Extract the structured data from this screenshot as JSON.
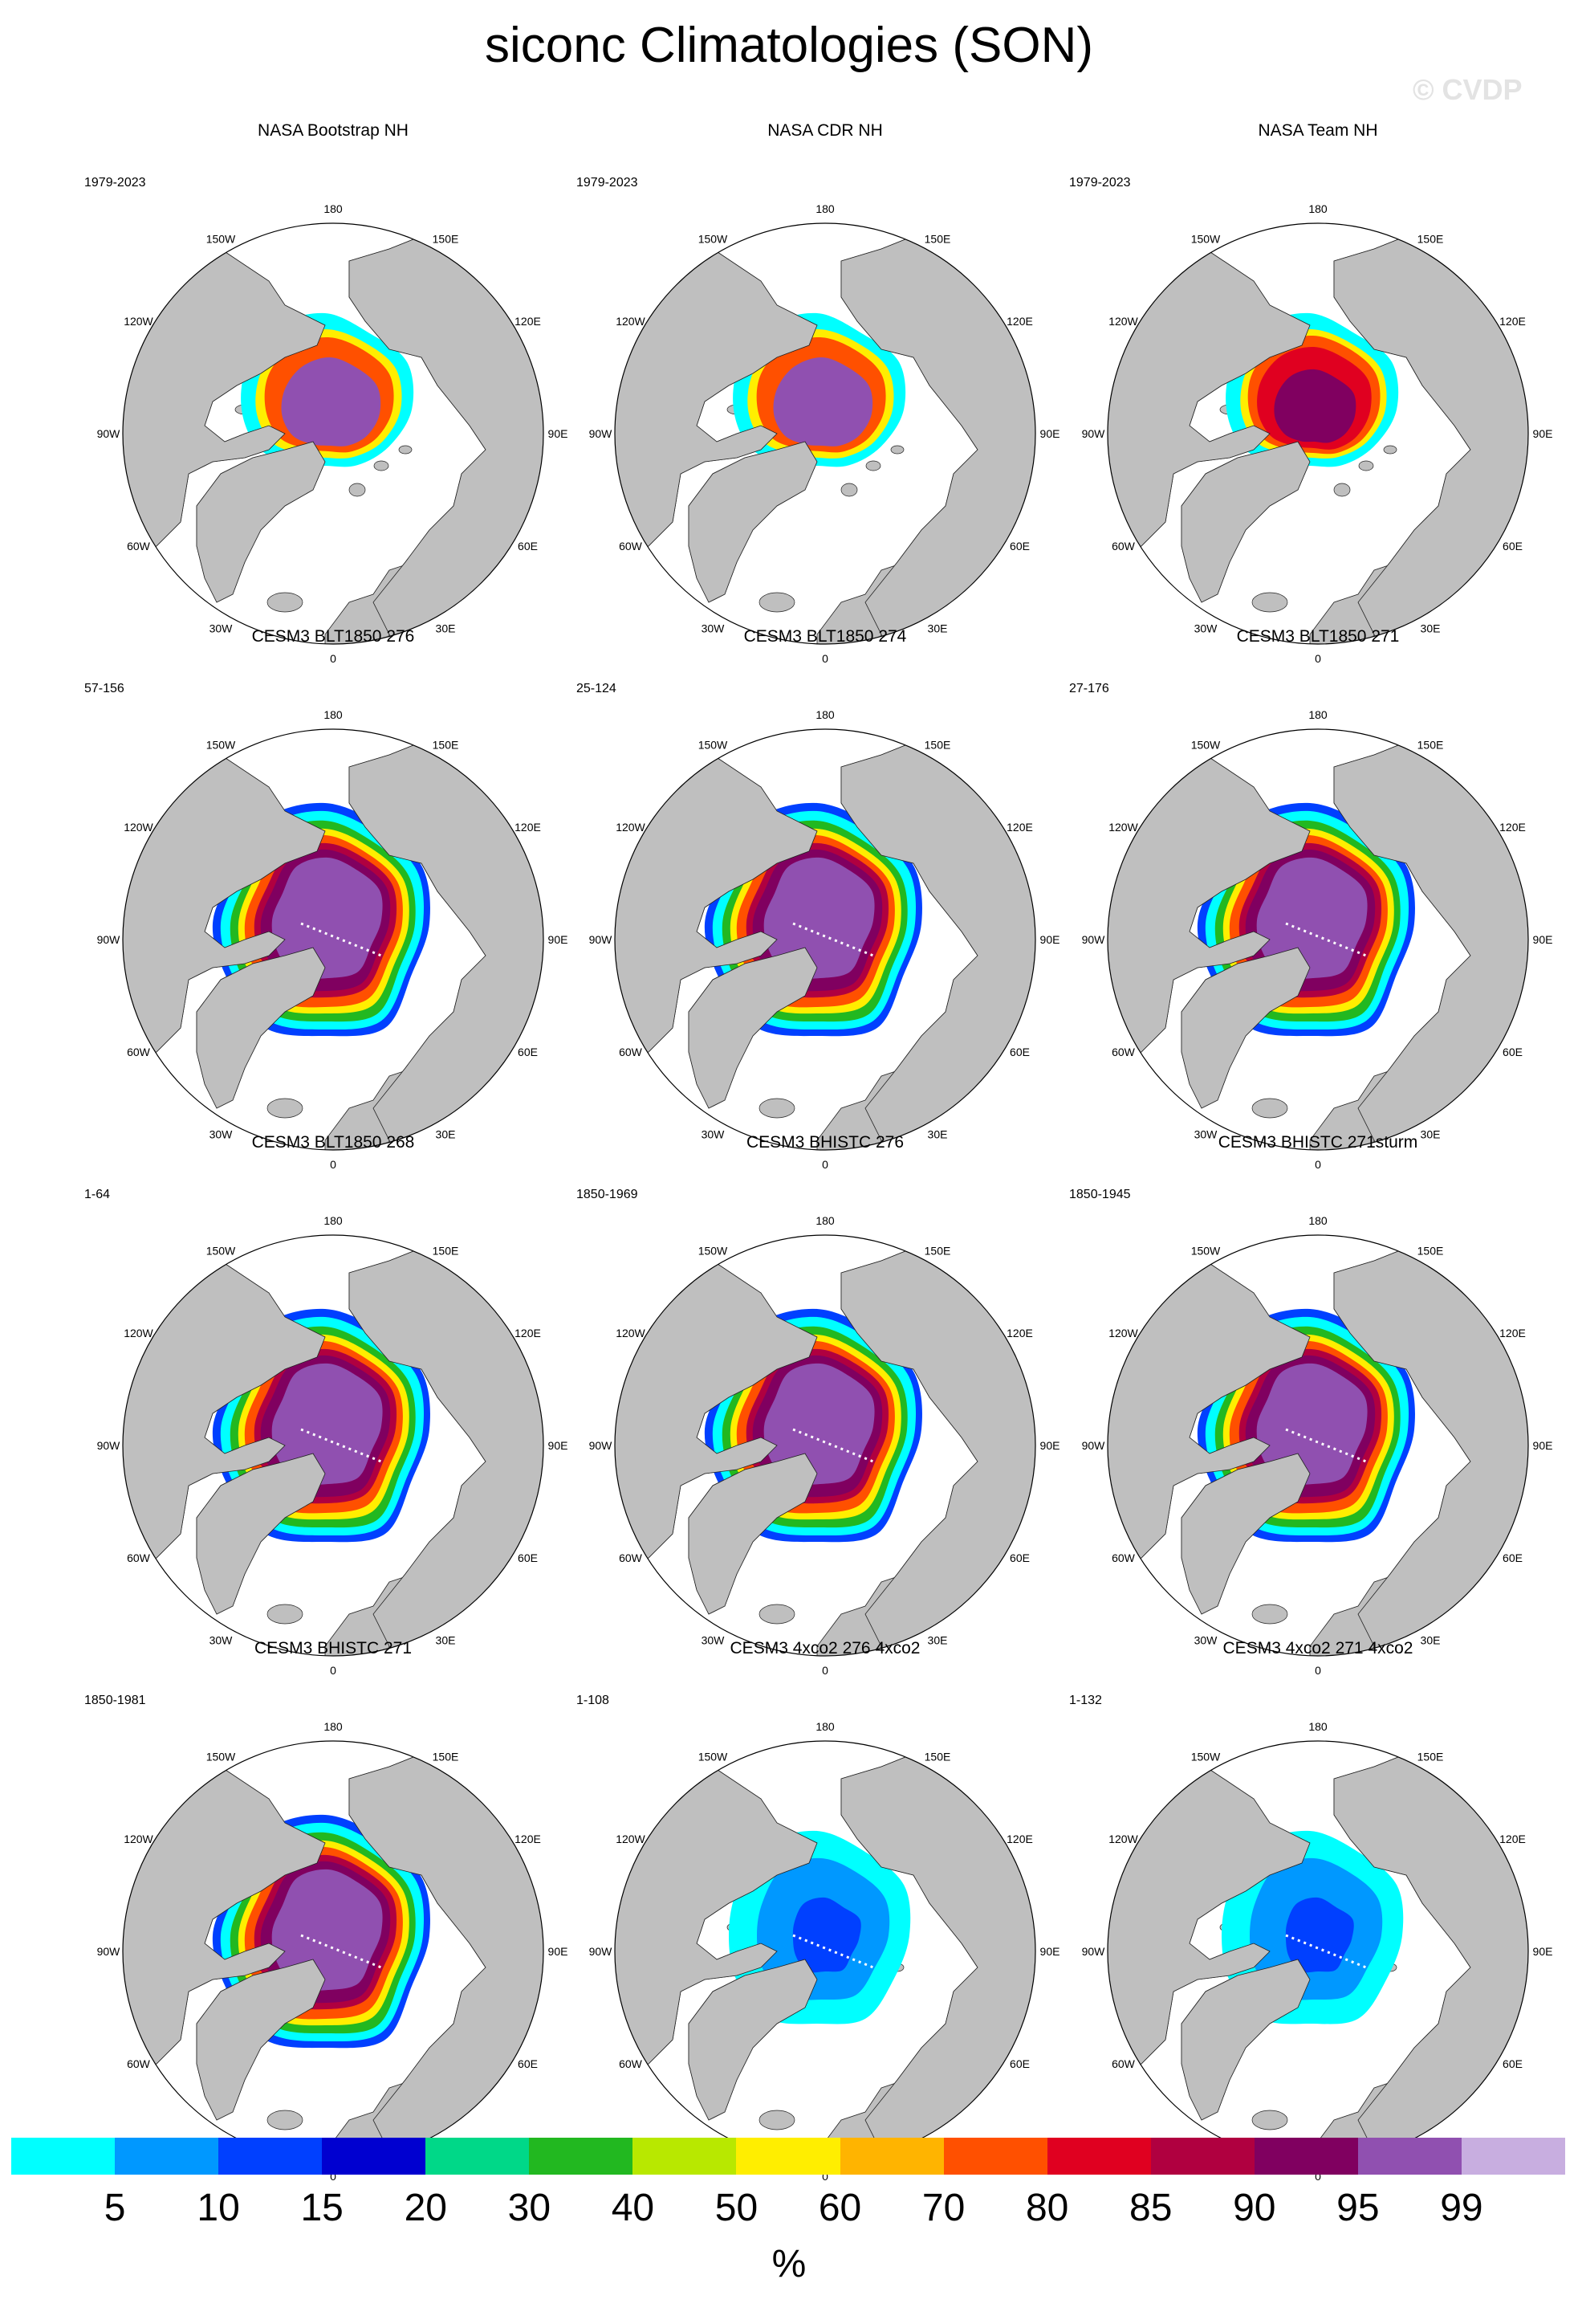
{
  "title": "siconc Climatologies (SON)",
  "credit": "© CVDP",
  "longitude_labels": [
    "180",
    "150E",
    "120E",
    "90E",
    "60E",
    "30E",
    "0",
    "30W",
    "60W",
    "90W",
    "120W",
    "150W"
  ],
  "panels": [
    {
      "title": "NASA Bootstrap NH",
      "years": "1979-2023",
      "style": "obs"
    },
    {
      "title": "NASA CDR NH",
      "years": "1979-2023",
      "style": "obs"
    },
    {
      "title": "NASA Team NH",
      "years": "1979-2023",
      "style": "team"
    },
    {
      "title": "CESM3 BLT1850 276",
      "years": "57-156",
      "style": "model"
    },
    {
      "title": "CESM3 BLT1850 274",
      "years": "25-124",
      "style": "model"
    },
    {
      "title": "CESM3 BLT1850 271",
      "years": "27-176",
      "style": "model"
    },
    {
      "title": "CESM3 BLT1850 268",
      "years": "1-64",
      "style": "model"
    },
    {
      "title": "CESM3 BHISTC 276",
      "years": "1850-1969",
      "style": "model"
    },
    {
      "title": "CESM3 BHISTC 271sturm",
      "years": "1850-1945",
      "style": "model"
    },
    {
      "title": "CESM3 BHISTC 271",
      "years": "1850-1981",
      "style": "model"
    },
    {
      "title": "CESM3 4xco2 276 4xco2",
      "years": "1-108",
      "style": "low"
    },
    {
      "title": "CESM3 4xco2 271 4xco2",
      "years": "1-132",
      "style": "low"
    }
  ],
  "colorbar": {
    "labels": [
      "5",
      "10",
      "15",
      "20",
      "30",
      "40",
      "50",
      "60",
      "70",
      "80",
      "85",
      "90",
      "95",
      "99"
    ],
    "colors": [
      "#00ffff",
      "#0098ff",
      "#0040ff",
      "#0000d0",
      "#00d888",
      "#22b820",
      "#b8e800",
      "#ffee00",
      "#ffb400",
      "#ff5000",
      "#e00020",
      "#b00040",
      "#800060",
      "#9050b0",
      "#c8aee0"
    ],
    "units": "%"
  },
  "colors": {
    "land": "#bfbfbf",
    "ocean": "#ffffff",
    "outline": "#000000"
  }
}
